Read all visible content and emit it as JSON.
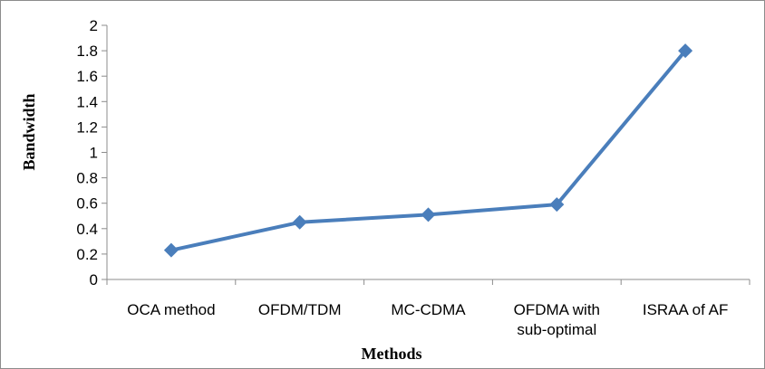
{
  "chart_data": {
    "type": "line",
    "categories": [
      "OCA method",
      "OFDM/TDM",
      "MC-CDMA",
      "OFDMA with sub-optimal",
      "ISRAA of AF"
    ],
    "category_lines": [
      [
        "OCA method"
      ],
      [
        "OFDM/TDM"
      ],
      [
        "MC-CDMA"
      ],
      [
        "OFDMA with",
        "sub-optimal"
      ],
      [
        "ISRAA of AF"
      ]
    ],
    "series": [
      {
        "values": [
          0.23,
          0.45,
          0.51,
          0.59,
          1.8
        ]
      }
    ],
    "xlabel": "Methods",
    "ylabel": "Bandwidth",
    "ylim": [
      0,
      2
    ],
    "ytick_step": 0.2,
    "yticks": [
      "0",
      "0.2",
      "0.4",
      "0.6",
      "0.8",
      "1",
      "1.2",
      "1.4",
      "1.6",
      "1.8",
      "2"
    ],
    "grid": false,
    "legend": "none",
    "series_color": "#4a7ebb",
    "marker": "diamond"
  }
}
